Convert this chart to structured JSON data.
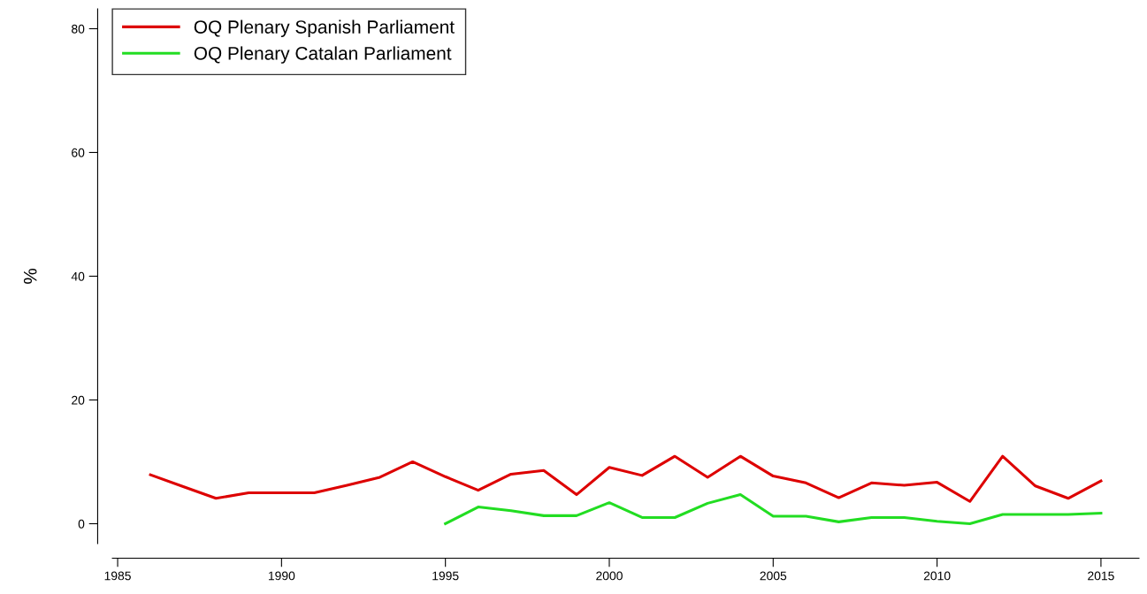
{
  "chart_data": {
    "type": "line",
    "ylabel": "%",
    "xlim": [
      1984.84,
      2016.16
    ],
    "ylim": [
      -3.2,
      83.2
    ],
    "xticks": [
      1985,
      1990,
      1995,
      2000,
      2005,
      2010,
      2015
    ],
    "yticks": [
      0,
      20,
      40,
      60,
      80
    ],
    "grid": false,
    "legend": "top left",
    "marker": "none",
    "line_style": "solid",
    "series": [
      {
        "name": "OQ Plenary Spanish Parliament",
        "color": "#dd0000",
        "x": [
          1986,
          1987,
          1988,
          1989,
          1990,
          1991,
          1992,
          1993,
          1994,
          1995,
          1996,
          1997,
          1998,
          1999,
          2000,
          2001,
          2002,
          2003,
          2004,
          2005,
          2006,
          2007,
          2008,
          2009,
          2010,
          2011,
          2012,
          2013,
          2014,
          2015
        ],
        "values": [
          7.9,
          6,
          4.1,
          5,
          5,
          5,
          6.2,
          7.5,
          10,
          7.6,
          5.4,
          8,
          8.6,
          4.7,
          9.1,
          7.8,
          10.9,
          7.5,
          10.9,
          7.7,
          6.6,
          4.2,
          6.6,
          6.2,
          6.7,
          3.6,
          10.9,
          6.1,
          4.1,
          6.9
        ]
      },
      {
        "name": "OQ Plenary Catalan Parliament",
        "color": "#22dd22",
        "x": [
          1995,
          1996,
          1997,
          1998,
          1999,
          2000,
          2001,
          2002,
          2003,
          2004,
          2005,
          2006,
          2007,
          2008,
          2009,
          2010,
          2011,
          2012,
          2013,
          2014,
          2015
        ],
        "values": [
          0,
          2.7,
          2.1,
          1.3,
          1.3,
          3.4,
          1,
          1,
          3.3,
          4.7,
          1.2,
          1.2,
          0.3,
          1,
          1,
          0.4,
          0,
          1.5,
          1.5,
          1.5,
          1.7
        ]
      }
    ]
  }
}
